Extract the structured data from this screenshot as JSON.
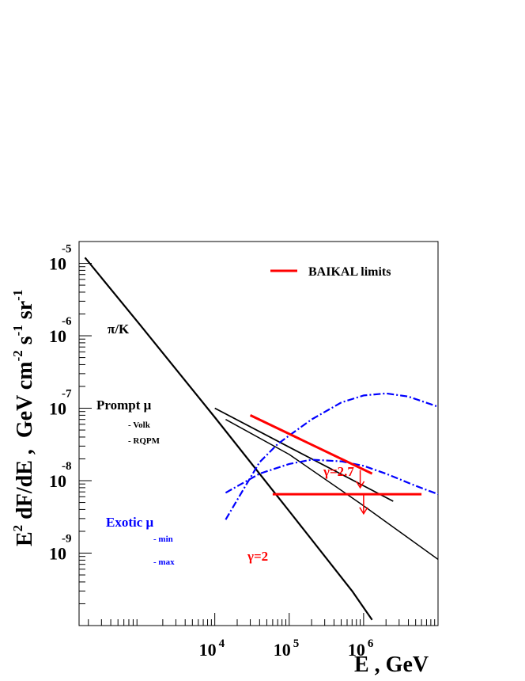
{
  "chart_data": {
    "type": "line",
    "title": "",
    "xlabel": "E , GeV",
    "ylabel": {
      "parts": [
        "E",
        "2",
        " dF/dE ,  GeV cm",
        "-2",
        " s",
        "-1",
        " sr",
        "-1"
      ]
    },
    "x_scale": "log",
    "y_scale": "log",
    "xlim": [
      150,
      10000000
    ],
    "ylim": [
      1e-10,
      2e-05
    ],
    "grid": false,
    "legend_position": "top-right",
    "x_ticks": [
      {
        "value": 10000,
        "base": "10",
        "exp": "4"
      },
      {
        "value": 100000,
        "base": "10",
        "exp": "5"
      },
      {
        "value": 1000000,
        "base": "10",
        "exp": "6"
      }
    ],
    "y_ticks": [
      {
        "value": 1e-05,
        "base": "10",
        "exp": "-5"
      },
      {
        "value": 1e-06,
        "base": "10",
        "exp": "-6"
      },
      {
        "value": 1e-07,
        "base": "10",
        "exp": "-7"
      },
      {
        "value": 1e-08,
        "base": "10",
        "exp": "-8"
      },
      {
        "value": 1e-09,
        "base": "10",
        "exp": "-9"
      }
    ],
    "colors": {
      "black": "#000000",
      "red": "#ff0000",
      "blue": "#0000ff"
    },
    "series": [
      {
        "key": "piK",
        "color": "#000000",
        "style": "solid",
        "width": 2.2,
        "x": [
          180,
          1000,
          10000,
          100000,
          700000,
          1300000
        ],
        "y": [
          1.2e-05,
          1.4e-06,
          7.5e-08,
          3.8e-09,
          3e-10,
          1.2e-10
        ]
      },
      {
        "key": "volk",
        "color": "#000000",
        "style": "solid",
        "width": 1.8,
        "x": [
          10000,
          100000,
          1000000,
          2500000
        ],
        "y": [
          1e-07,
          2.9e-08,
          8.5e-09,
          5.2e-09
        ]
      },
      {
        "key": "rqpm",
        "color": "#000000",
        "style": "solid",
        "width": 1.5,
        "x": [
          14000,
          100000,
          1000000,
          10000000
        ],
        "y": [
          7e-08,
          2.3e-08,
          4.5e-09,
          8.2e-10
        ]
      },
      {
        "key": "exotic_min",
        "color": "#0000ff",
        "style": "dashdot",
        "width": 2.2,
        "x": [
          14000,
          40000,
          100000,
          200000,
          500000,
          1000000,
          2000000,
          5000000,
          10000000
        ],
        "y": [
          6.8e-09,
          1.25e-08,
          1.7e-08,
          1.95e-08,
          1.85e-08,
          1.6e-08,
          1.25e-08,
          8.5e-09,
          6.5e-09
        ]
      },
      {
        "key": "exotic_max",
        "color": "#0000ff",
        "style": "dashdot",
        "width": 2.2,
        "x": [
          14000,
          25000,
          40000,
          70000,
          100000,
          200000,
          500000,
          1000000,
          2000000,
          4000000,
          10000000
        ],
        "y": [
          2.9e-09,
          8e-09,
          1.8e-08,
          3.2e-08,
          4.2e-08,
          7e-08,
          1.2e-07,
          1.5e-07,
          1.6e-07,
          1.45e-07,
          1.05e-07
        ]
      }
    ],
    "limits": [
      {
        "key": "gamma27",
        "color": "#ff0000",
        "x": [
          30000,
          1300000
        ],
        "y": [
          8e-08,
          1.25e-08
        ]
      },
      {
        "key": "gamma2",
        "color": "#ff0000",
        "x": [
          60000,
          6000000
        ],
        "y": [
          6.5e-09,
          6.5e-09
        ]
      }
    ],
    "arrows": [
      {
        "key": "arrow-gamma27",
        "x": 900000,
        "y_from": 1.4e-08,
        "y_to": 8e-09
      },
      {
        "key": "arrow-gamma2",
        "x": 1000000,
        "y_from": 6.4e-09,
        "y_to": 3.5e-09
      }
    ],
    "annotations": {
      "piK": "π/K",
      "prompt": "Prompt  μ",
      "volk": "- Volk",
      "rqpm": "- RQPM",
      "exotic": "Exotic  μ",
      "exotic_min": "- min",
      "exotic_max": "- max",
      "gamma27": "γ=2.7",
      "gamma2": "γ=2"
    },
    "legend": {
      "label": "BAIKAL limits",
      "color": "#ff0000"
    }
  }
}
